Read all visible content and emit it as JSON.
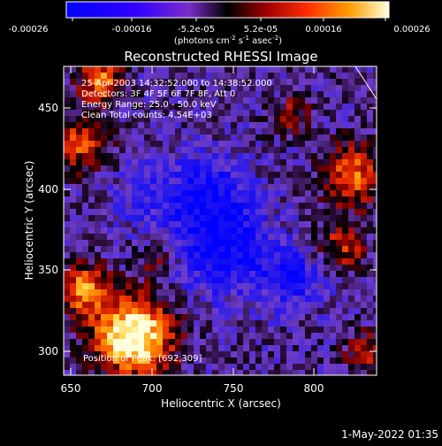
{
  "colorbar": {
    "tick_labels": [
      "-0.00026",
      "-0.00016",
      "-5.2e-05",
      "5.2e-05",
      "0.00016",
      "0.00026"
    ],
    "unit_main": "(photons cm",
    "unit_sup1": "-2",
    "unit_mid1": " s",
    "unit_sup2": "-1",
    "unit_mid2": " asec",
    "unit_sup3": "-2",
    "unit_end": ")"
  },
  "title": "Reconstructed RHESSI Image",
  "annotations": [
    "25-Apr-2003 14:32:52.000 to 14:38:52.000",
    "Detectors: 3F 4F 5F 6F 7F 8F, Att 0",
    "Energy Range: 25.0 - 50.0 keV",
    "Clean     Total counts: 4.54E+03"
  ],
  "position_label": "Position of Peak: [692,309]",
  "axes": {
    "xlabel": "Heliocentric X (arcsec)",
    "ylabel": "Heliocentric Y (arcsec)",
    "xticks": [
      "650",
      "700",
      "750",
      "800"
    ],
    "yticks": [
      "300",
      "350",
      "400",
      "450"
    ],
    "xlim": [
      645,
      840
    ],
    "ylim": [
      284,
      483
    ]
  },
  "footer_timestamp": "1-May-2022 01:35",
  "colors": {
    "background": "#000000",
    "frame": "#ffffff"
  }
}
